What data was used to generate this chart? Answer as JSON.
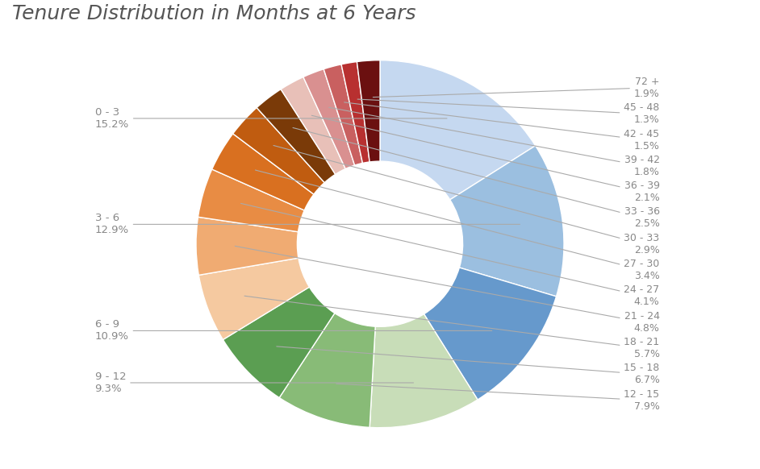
{
  "title": "Tenure Distribution in Months at 6 Years",
  "slices": [
    {
      "label": "0 - 3",
      "pct": 15.2,
      "color": "#c5d8f0"
    },
    {
      "label": "3 - 6",
      "pct": 12.9,
      "color": "#9bbfe0"
    },
    {
      "label": "6 - 9",
      "pct": 10.9,
      "color": "#6699cc"
    },
    {
      "label": "9 - 12",
      "pct": 9.3,
      "color": "#c8ddb8"
    },
    {
      "label": "12 - 15",
      "pct": 7.9,
      "color": "#88bb77"
    },
    {
      "label": "15 - 18",
      "pct": 6.7,
      "color": "#5b9e52"
    },
    {
      "label": "18 - 21",
      "pct": 5.7,
      "color": "#f5c9a0"
    },
    {
      "label": "21 - 24",
      "pct": 4.8,
      "color": "#f0ab72"
    },
    {
      "label": "24 - 27",
      "pct": 4.1,
      "color": "#e88c44"
    },
    {
      "label": "27 - 30",
      "pct": 3.4,
      "color": "#d97020"
    },
    {
      "label": "30 - 33",
      "pct": 2.9,
      "color": "#c05c10"
    },
    {
      "label": "33 - 36",
      "pct": 2.5,
      "color": "#7a3a08"
    },
    {
      "label": "36 - 39",
      "pct": 2.1,
      "color": "#e8c0b8"
    },
    {
      "label": "39 - 42",
      "pct": 1.8,
      "color": "#d99090"
    },
    {
      "label": "42 - 45",
      "pct": 1.5,
      "color": "#c96060"
    },
    {
      "label": "45 - 48",
      "pct": 1.3,
      "color": "#b83030"
    },
    {
      "label": "72 +",
      "pct": 1.9,
      "color": "#6b1010"
    }
  ],
  "left_labels": [
    "0 - 3",
    "3 - 6",
    "6 - 9",
    "9 - 12"
  ],
  "left_pcts": [
    "15.2%",
    "12.9%",
    "10.9%",
    "9.3%"
  ],
  "right_labels_top": [
    "72 +",
    "45 - 48",
    "42 - 45",
    "39 - 42",
    "36 - 39",
    "33 - 36",
    "30 - 33",
    "27 - 30",
    "24 - 27",
    "21 - 24",
    "18 - 21",
    "15 - 18",
    "12 - 15"
  ],
  "right_pcts_top": [
    "1.9%",
    "1.3%",
    "1.5%",
    "1.8%",
    "2.1%",
    "2.5%",
    "2.9%",
    "3.4%",
    "4.1%",
    "4.8%",
    "5.7%",
    "6.7%",
    "7.9%"
  ],
  "title_fontsize": 18,
  "label_fontsize": 11
}
